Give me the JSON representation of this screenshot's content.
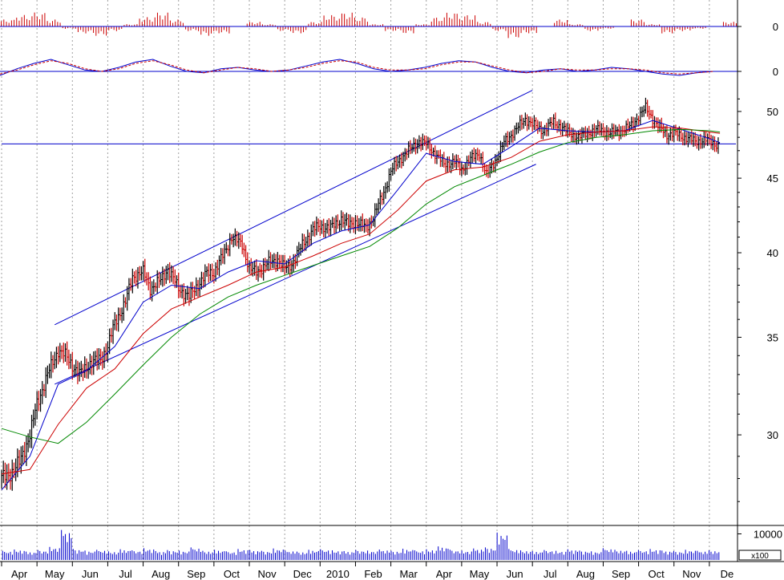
{
  "chart_data": [
    {
      "type": "bar",
      "panel": "oscillator-histogram",
      "color": "#cc0000",
      "zero_label": "0",
      "ylim": [
        -1,
        1
      ],
      "values": [
        0.3,
        0.5,
        0.6,
        0.3,
        -0.1,
        -0.3,
        -0.4,
        -0.2,
        0.1,
        0.4,
        0.6,
        0.3,
        -0.2,
        -0.4,
        -0.3,
        0.0,
        0.2,
        0.1,
        -0.2,
        -0.3,
        0.2,
        0.5,
        0.6,
        0.4,
        0.1,
        -0.2,
        -0.3,
        0.1,
        0.4,
        0.6,
        0.5,
        0.2,
        -0.2,
        -0.5,
        -0.3,
        0.0,
        0.3,
        0.1,
        -0.2,
        -0.1,
        0.0,
        0.3,
        0.1,
        -0.3,
        -0.2,
        -0.1,
        0.0,
        0.2
      ]
    },
    {
      "type": "line",
      "panel": "oscillator-lines",
      "zero_label": "0",
      "ylim": [
        -1,
        1.2
      ],
      "colors": {
        "main": "#0000cc",
        "signal": "#cc0000"
      },
      "main": [
        -0.3,
        0.2,
        0.6,
        0.9,
        0.5,
        0.1,
        0.0,
        0.3,
        0.7,
        0.9,
        0.4,
        0.0,
        -0.1,
        0.2,
        0.3,
        0.1,
        0.0,
        0.1,
        0.4,
        0.7,
        0.9,
        0.6,
        0.2,
        0.0,
        0.1,
        0.3,
        0.6,
        0.8,
        0.7,
        0.3,
        0.0,
        -0.1,
        0.1,
        0.2,
        0.0,
        0.1,
        0.3,
        0.2,
        0.0,
        -0.2,
        -0.3,
        -0.1,
        0.0
      ],
      "signal": [
        -0.2,
        0.1,
        0.5,
        0.8,
        0.6,
        0.2,
        0.0,
        0.2,
        0.6,
        0.8,
        0.5,
        0.1,
        -0.1,
        0.1,
        0.3,
        0.2,
        0.0,
        0.1,
        0.3,
        0.6,
        0.8,
        0.7,
        0.3,
        0.1,
        0.1,
        0.2,
        0.5,
        0.7,
        0.7,
        0.4,
        0.1,
        -0.1,
        0.0,
        0.2,
        0.1,
        0.1,
        0.2,
        0.2,
        0.1,
        -0.1,
        -0.2,
        -0.1,
        0.0
      ]
    },
    {
      "type": "line",
      "panel": "price",
      "ylim": [
        26,
        52
      ],
      "y_ticks": [
        30,
        35,
        40,
        45,
        50
      ],
      "x_labels": [
        "Apr",
        "May",
        "Jun",
        "Jul",
        "Aug",
        "Sep",
        "Oct",
        "Nov",
        "Dec",
        "2010",
        "Feb",
        "Mar",
        "Apr",
        "May",
        "Jun",
        "Jul",
        "Aug",
        "Sep",
        "Oct",
        "Nov",
        "De"
      ],
      "x_label_months": [
        0.5,
        1.5,
        2.5,
        3.5,
        4.5,
        5.5,
        6.5,
        7.5,
        8.5,
        9.5,
        10.5,
        11.5,
        12.5,
        13.5,
        14.5,
        15.5,
        16.5,
        17.5,
        18.5,
        19.5,
        20.5
      ],
      "x_range_months": [
        0,
        20.75
      ],
      "close": [
        [
          0.0,
          28.0
        ],
        [
          0.3,
          28.3
        ],
        [
          0.5,
          28.7
        ],
        [
          0.8,
          30.0
        ],
        [
          1.0,
          31.5
        ],
        [
          1.3,
          33.0
        ],
        [
          1.6,
          34.3
        ],
        [
          1.8,
          34.0
        ],
        [
          2.0,
          33.5
        ],
        [
          2.2,
          33.0
        ],
        [
          2.5,
          33.6
        ],
        [
          2.8,
          33.8
        ],
        [
          3.0,
          34.5
        ],
        [
          3.2,
          35.8
        ],
        [
          3.5,
          37.0
        ],
        [
          3.7,
          38.5
        ],
        [
          4.0,
          38.8
        ],
        [
          4.2,
          37.8
        ],
        [
          4.5,
          38.3
        ],
        [
          4.7,
          39.0
        ],
        [
          5.0,
          37.8
        ],
        [
          5.3,
          37.3
        ],
        [
          5.5,
          37.9
        ],
        [
          5.8,
          38.7
        ],
        [
          6.0,
          38.8
        ],
        [
          6.3,
          40.0
        ],
        [
          6.5,
          41.0
        ],
        [
          6.8,
          40.5
        ],
        [
          7.0,
          39.0
        ],
        [
          7.2,
          38.8
        ],
        [
          7.5,
          39.3
        ],
        [
          7.8,
          39.6
        ],
        [
          8.0,
          39.0
        ],
        [
          8.2,
          39.3
        ],
        [
          8.5,
          40.5
        ],
        [
          8.8,
          41.5
        ],
        [
          9.0,
          41.7
        ],
        [
          9.3,
          41.6
        ],
        [
          9.6,
          42.2
        ],
        [
          9.8,
          41.8
        ],
        [
          10.0,
          42.0
        ],
        [
          10.3,
          41.6
        ],
        [
          10.5,
          42.3
        ],
        [
          10.8,
          44.0
        ],
        [
          11.0,
          45.5
        ],
        [
          11.3,
          46.5
        ],
        [
          11.5,
          47.0
        ],
        [
          11.8,
          47.7
        ],
        [
          12.0,
          47.5
        ],
        [
          12.3,
          46.6
        ],
        [
          12.5,
          46.0
        ],
        [
          12.8,
          46.2
        ],
        [
          13.0,
          45.6
        ],
        [
          13.2,
          46.3
        ],
        [
          13.5,
          46.8
        ],
        [
          13.7,
          45.2
        ],
        [
          14.0,
          46.5
        ],
        [
          14.2,
          47.6
        ],
        [
          14.5,
          48.5
        ],
        [
          14.8,
          49.4
        ],
        [
          15.0,
          49.0
        ],
        [
          15.3,
          48.5
        ],
        [
          15.6,
          49.2
        ],
        [
          15.8,
          48.8
        ],
        [
          16.0,
          48.4
        ],
        [
          16.3,
          48.0
        ],
        [
          16.6,
          48.4
        ],
        [
          16.9,
          48.6
        ],
        [
          17.2,
          48.3
        ],
        [
          17.5,
          48.5
        ],
        [
          17.8,
          48.9
        ],
        [
          18.0,
          49.6
        ],
        [
          18.2,
          50.3
        ],
        [
          18.5,
          49.0
        ],
        [
          18.8,
          48.2
        ],
        [
          19.0,
          48.3
        ],
        [
          19.3,
          48.0
        ],
        [
          19.6,
          47.7
        ],
        [
          19.9,
          47.8
        ],
        [
          20.1,
          47.6
        ],
        [
          20.3,
          47.3
        ]
      ],
      "overlays": [
        {
          "color": "#0000cc",
          "points": [
            [
              0.0,
              27.5
            ],
            [
              0.8,
              29.0
            ],
            [
              1.6,
              32.5
            ],
            [
              2.4,
              33.2
            ],
            [
              3.2,
              34.5
            ],
            [
              4.0,
              37.0
            ],
            [
              4.8,
              38.0
            ],
            [
              5.6,
              37.8
            ],
            [
              6.4,
              38.8
            ],
            [
              7.2,
              39.5
            ],
            [
              8.0,
              39.3
            ],
            [
              8.8,
              40.6
            ],
            [
              9.6,
              41.4
            ],
            [
              10.4,
              41.8
            ],
            [
              11.2,
              44.2
            ],
            [
              12.0,
              46.8
            ],
            [
              12.8,
              46.2
            ],
            [
              13.6,
              46.0
            ],
            [
              14.4,
              47.3
            ],
            [
              15.2,
              48.7
            ],
            [
              16.0,
              48.5
            ],
            [
              16.8,
              48.4
            ],
            [
              17.6,
              48.5
            ],
            [
              18.4,
              49.3
            ],
            [
              19.2,
              48.6
            ],
            [
              20.0,
              47.9
            ],
            [
              20.3,
              47.6
            ]
          ]
        },
        {
          "color": "#cc0000",
          "points": [
            [
              0.0,
              28.2
            ],
            [
              0.8,
              28.4
            ],
            [
              1.6,
              30.5
            ],
            [
              2.4,
              32.3
            ],
            [
              3.2,
              33.3
            ],
            [
              4.0,
              35.2
            ],
            [
              4.8,
              36.6
            ],
            [
              5.6,
              37.3
            ],
            [
              6.4,
              38.0
            ],
            [
              7.2,
              38.8
            ],
            [
              8.0,
              39.1
            ],
            [
              8.8,
              39.8
            ],
            [
              9.6,
              40.6
            ],
            [
              10.4,
              41.2
            ],
            [
              11.2,
              42.8
            ],
            [
              12.0,
              44.8
            ],
            [
              12.8,
              45.6
            ],
            [
              13.6,
              45.8
            ],
            [
              14.4,
              46.5
            ],
            [
              15.2,
              47.7
            ],
            [
              16.0,
              48.2
            ],
            [
              16.8,
              48.4
            ],
            [
              17.6,
              48.5
            ],
            [
              18.4,
              48.8
            ],
            [
              19.2,
              48.7
            ],
            [
              20.0,
              48.4
            ],
            [
              20.3,
              48.3
            ]
          ]
        },
        {
          "color": "#008800",
          "points": [
            [
              0.0,
              30.3
            ],
            [
              0.8,
              29.9
            ],
            [
              1.6,
              29.6
            ],
            [
              2.4,
              30.6
            ],
            [
              3.2,
              32.0
            ],
            [
              4.0,
              33.5
            ],
            [
              4.8,
              35.0
            ],
            [
              5.6,
              36.3
            ],
            [
              6.4,
              37.3
            ],
            [
              7.2,
              38.0
            ],
            [
              8.0,
              38.6
            ],
            [
              8.8,
              39.2
            ],
            [
              9.6,
              39.8
            ],
            [
              10.4,
              40.4
            ],
            [
              11.2,
              41.6
            ],
            [
              12.0,
              43.2
            ],
            [
              12.8,
              44.4
            ],
            [
              13.6,
              45.2
            ],
            [
              14.4,
              46.0
            ],
            [
              15.2,
              46.9
            ],
            [
              16.0,
              47.6
            ],
            [
              16.8,
              48.0
            ],
            [
              17.6,
              48.2
            ],
            [
              18.4,
              48.5
            ],
            [
              19.2,
              48.6
            ],
            [
              20.0,
              48.5
            ],
            [
              20.3,
              48.4
            ]
          ]
        }
      ],
      "trend_lines": [
        {
          "color": "#0000cc",
          "points": [
            [
              1.5,
              35.7
            ],
            [
              15.0,
              51.7
            ]
          ]
        },
        {
          "color": "#0000cc",
          "points": [
            [
              1.5,
              32.5
            ],
            [
              15.1,
              46.0
            ]
          ]
        },
        {
          "color": "#0000cc",
          "points": [
            [
              0.0,
              47.5
            ],
            [
              20.75,
              47.5
            ]
          ]
        }
      ]
    },
    {
      "type": "bar",
      "panel": "volume",
      "color": "#0000cc",
      "y_tick_label": "10000",
      "scale_label": "x100",
      "ylim": [
        0,
        12000
      ],
      "values": [
        3500,
        4000,
        3200,
        3800,
        5000,
        11500,
        4200,
        3600,
        3900,
        3300,
        4100,
        3700,
        4500,
        3400,
        3800,
        3600,
        4800,
        3500,
        3900,
        3300,
        4200,
        3800,
        3500,
        4400,
        3600,
        3200,
        3900,
        4100,
        3700,
        3400,
        3800,
        3600,
        4000,
        3500,
        4300,
        3700,
        4100,
        5200,
        3900,
        3600,
        4400,
        4800,
        10500,
        4200,
        3700,
        3400,
        3800,
        3500,
        4100,
        3600,
        3300,
        4500,
        3900,
        3500,
        3800,
        4200,
        3600,
        3400,
        3900,
        3500,
        3700
      ]
    }
  ]
}
